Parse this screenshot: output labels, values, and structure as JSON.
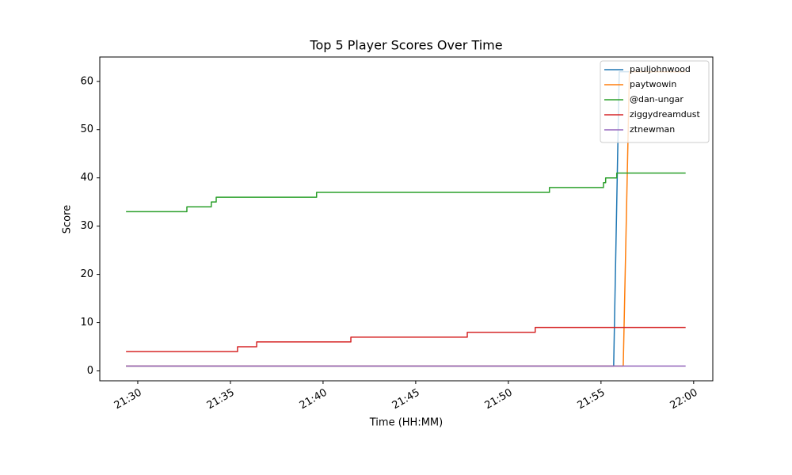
{
  "chart_data": {
    "type": "line",
    "title": "Top 5 Player Scores Over Time",
    "x_label": "Time (HH:MM)",
    "y_label": "Score",
    "xlim": [
      "21:27:57",
      "22:01:02"
    ],
    "xticks": [
      "21:30",
      "21:35",
      "21:40",
      "21:45",
      "21:50",
      "21:55",
      "22:00"
    ],
    "ylim": [
      -2.05,
      65.05
    ],
    "yticks": [
      0,
      10,
      20,
      30,
      40,
      50,
      60
    ],
    "grid": false,
    "legend": "upper right",
    "series": [
      {
        "name": "pauljohnwood",
        "color": "#1f77b4",
        "x": [
          "21:29:22",
          "21:55:41",
          "21:55:59",
          "21:59:34"
        ],
        "values": [
          1,
          1,
          62,
          62
        ]
      },
      {
        "name": "paytwowin",
        "color": "#ff7f0e",
        "x": [
          "21:29:22",
          "21:56:12",
          "21:56:32",
          "21:59:34"
        ],
        "values": [
          1,
          1,
          62,
          62
        ]
      },
      {
        "name": "@dan-ungar",
        "color": "#2ca02c",
        "x": [
          "21:29:22",
          "21:32:39",
          "21:32:39",
          "21:33:58",
          "21:33:58",
          "21:34:14",
          "21:34:14",
          "21:39:39",
          "21:39:39",
          "21:52:13",
          "21:52:13",
          "21:55:08",
          "21:55:08",
          "21:55:15",
          "21:55:15",
          "21:55:51",
          "21:55:51",
          "21:59:34"
        ],
        "values": [
          33,
          33,
          34,
          34,
          35,
          35,
          36,
          36,
          37,
          37,
          38,
          38,
          39,
          39,
          40,
          40,
          41,
          41
        ]
      },
      {
        "name": "ziggydreamdust",
        "color": "#d62728",
        "x": [
          "21:29:22",
          "21:35:23",
          "21:35:23",
          "21:36:25",
          "21:36:25",
          "21:41:30",
          "21:41:30",
          "21:47:47",
          "21:47:47",
          "21:51:27",
          "21:51:27",
          "21:59:34"
        ],
        "values": [
          4,
          4,
          5,
          5,
          6,
          6,
          7,
          7,
          8,
          8,
          9,
          9
        ]
      },
      {
        "name": "ztnewman",
        "color": "#9467bd",
        "x": [
          "21:29:22",
          "21:59:34"
        ],
        "values": [
          1,
          1
        ]
      }
    ]
  }
}
